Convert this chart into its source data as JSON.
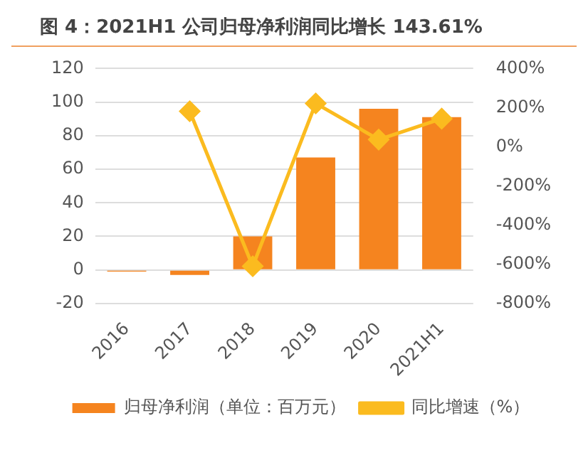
{
  "chart_data": {
    "type": "bar",
    "title": "图 4：2021H1 公司归母净利润同比增长 143.61%",
    "categories": [
      "2016",
      "2017",
      "2018",
      "2019",
      "2020",
      "2021H1"
    ],
    "series": [
      {
        "name": "归母净利润（单位：百万元）",
        "color": "#f5841f",
        "values": [
          -1,
          -3,
          20,
          67,
          96,
          91
        ]
      },
      {
        "name": "同比增速（%）",
        "type": "line",
        "axis": "y2",
        "color": "#fbbb1f",
        "marker": "diamond",
        "values": [
          null,
          182,
          -610,
          222,
          37,
          144
        ]
      }
    ],
    "ylim": [
      -20,
      120
    ],
    "yticks": [
      -20,
      0,
      20,
      40,
      60,
      80,
      100,
      120
    ],
    "y2lim": [
      -800,
      400
    ],
    "y2ticks": [
      {
        "value": -800,
        "label": "-800%"
      },
      {
        "value": -600,
        "label": "-600%"
      },
      {
        "value": -400,
        "label": "-400%"
      },
      {
        "value": -200,
        "label": "-200%"
      },
      {
        "value": 0,
        "label": "0%"
      },
      {
        "value": 200,
        "label": "200%"
      },
      {
        "value": 400,
        "label": "400%"
      }
    ],
    "grid": "y",
    "legend": "bottom"
  }
}
